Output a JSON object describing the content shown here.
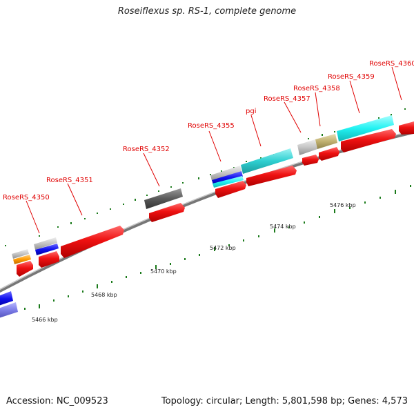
{
  "title": "Roseiflexus sp. RS-1, complete genome",
  "footer": {
    "accession": "Accession: NC_009523",
    "topology": "Topology: circular; Length: 5,801,598 bp; Genes: 4,573"
  },
  "colors": {
    "cds": "#ee1111",
    "label": "#e00000",
    "backbone": "#888888",
    "tick": "#1a7a1a"
  },
  "genes": [
    {
      "name": "RoseRS_4350"
    },
    {
      "name": "RoseRS_4351"
    },
    {
      "name": "RoseRS_4352"
    },
    {
      "name": "RoseRS_4355"
    },
    {
      "name": "pgi"
    },
    {
      "name": "RoseRS_4357"
    },
    {
      "name": "RoseRS_4358"
    },
    {
      "name": "RoseRS_4359"
    },
    {
      "name": "RoseRS_4360"
    }
  ],
  "scale_labels": [
    "5466 kbp",
    "5468 kbp",
    "5470 kbp",
    "5472 kbp",
    "5474 kbp",
    "5476 kbp"
  ]
}
